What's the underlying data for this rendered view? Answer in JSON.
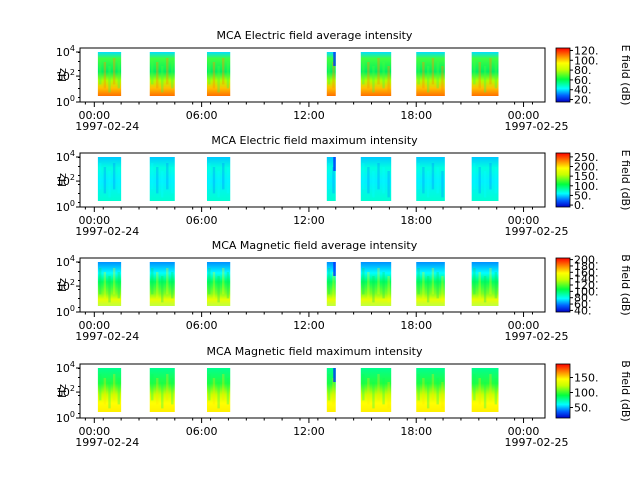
{
  "chart_data": [
    {
      "type": "heatmap",
      "title": "MCA  Electric field average intensity",
      "ylabel": "Hz",
      "y_scale": "log",
      "y_ticks": [
        "10^0",
        "10^2",
        "10^4"
      ],
      "x_ticks": [
        "00:00",
        "06:00",
        "12:00",
        "18:00",
        "00:00"
      ],
      "x_dates": [
        "1997-02-24",
        "1997-02-25"
      ],
      "colorbar": {
        "label": "E field (dB)",
        "ticks": [
          "20.",
          "40.",
          "60.",
          "80.",
          "100.",
          "120."
        ],
        "range": [
          15,
          125
        ]
      },
      "data_blocks_hours": [
        [
          0.2,
          1.5
        ],
        [
          3.1,
          4.5
        ],
        [
          6.3,
          7.6
        ],
        [
          13.0,
          13.5
        ],
        [
          14.9,
          16.6
        ],
        [
          18.0,
          19.6
        ],
        [
          21.1,
          22.6
        ]
      ],
      "style": "avg-e"
    },
    {
      "type": "heatmap",
      "title": "MCA  Electric field maximum intensity",
      "ylabel": "Hz",
      "y_scale": "log",
      "y_ticks": [
        "10^0",
        "10^2",
        "10^4"
      ],
      "x_ticks": [
        "00:00",
        "06:00",
        "12:00",
        "18:00",
        "00:00"
      ],
      "x_dates": [
        "1997-02-24",
        "1997-02-25"
      ],
      "colorbar": {
        "label": "E field (dB)",
        "ticks": [
          "0.",
          "50.",
          "100.",
          "150.",
          "200.",
          "250."
        ],
        "range": [
          -10,
          270
        ]
      },
      "data_blocks_hours": [
        [
          0.2,
          1.5
        ],
        [
          3.1,
          4.5
        ],
        [
          6.3,
          7.6
        ],
        [
          13.0,
          13.5
        ],
        [
          14.9,
          16.6
        ],
        [
          18.0,
          19.6
        ],
        [
          21.1,
          22.6
        ]
      ],
      "style": "max-e"
    },
    {
      "type": "heatmap",
      "title": "MCA  Magnetic field average intensity",
      "ylabel": "Hz",
      "y_scale": "log",
      "y_ticks": [
        "10^0",
        "10^2",
        "10^4"
      ],
      "x_ticks": [
        "00:00",
        "06:00",
        "12:00",
        "18:00",
        "00:00"
      ],
      "x_dates": [
        "1997-02-24",
        "1997-02-25"
      ],
      "colorbar": {
        "label": "B field (dB)",
        "ticks": [
          "40.",
          "60.",
          "80.",
          "100.",
          "120.",
          "140.",
          "160.",
          "180.",
          "200."
        ],
        "range": [
          35,
          205
        ]
      },
      "data_blocks_hours": [
        [
          0.2,
          1.5
        ],
        [
          3.1,
          4.5
        ],
        [
          6.3,
          7.6
        ],
        [
          13.0,
          13.5
        ],
        [
          14.9,
          16.6
        ],
        [
          18.0,
          19.6
        ],
        [
          21.1,
          22.6
        ]
      ],
      "style": "avg-b"
    },
    {
      "type": "heatmap",
      "title": "MCA  Magnetic field maximum intensity",
      "ylabel": "Hz",
      "y_scale": "log",
      "y_ticks": [
        "10^0",
        "10^2",
        "10^4"
      ],
      "x_ticks": [
        "00:00",
        "06:00",
        "12:00",
        "18:00",
        "00:00"
      ],
      "x_dates": [
        "1997-02-24",
        "1997-02-25"
      ],
      "colorbar": {
        "label": "B field (dB)",
        "ticks": [
          "50.",
          "100.",
          "150."
        ],
        "range": [
          15,
          195
        ]
      },
      "data_blocks_hours": [
        [
          0.2,
          1.5
        ],
        [
          3.1,
          4.5
        ],
        [
          6.3,
          7.6
        ],
        [
          13.0,
          13.5
        ],
        [
          14.9,
          16.6
        ],
        [
          18.0,
          19.6
        ],
        [
          21.1,
          22.6
        ]
      ],
      "style": "max-b"
    }
  ]
}
